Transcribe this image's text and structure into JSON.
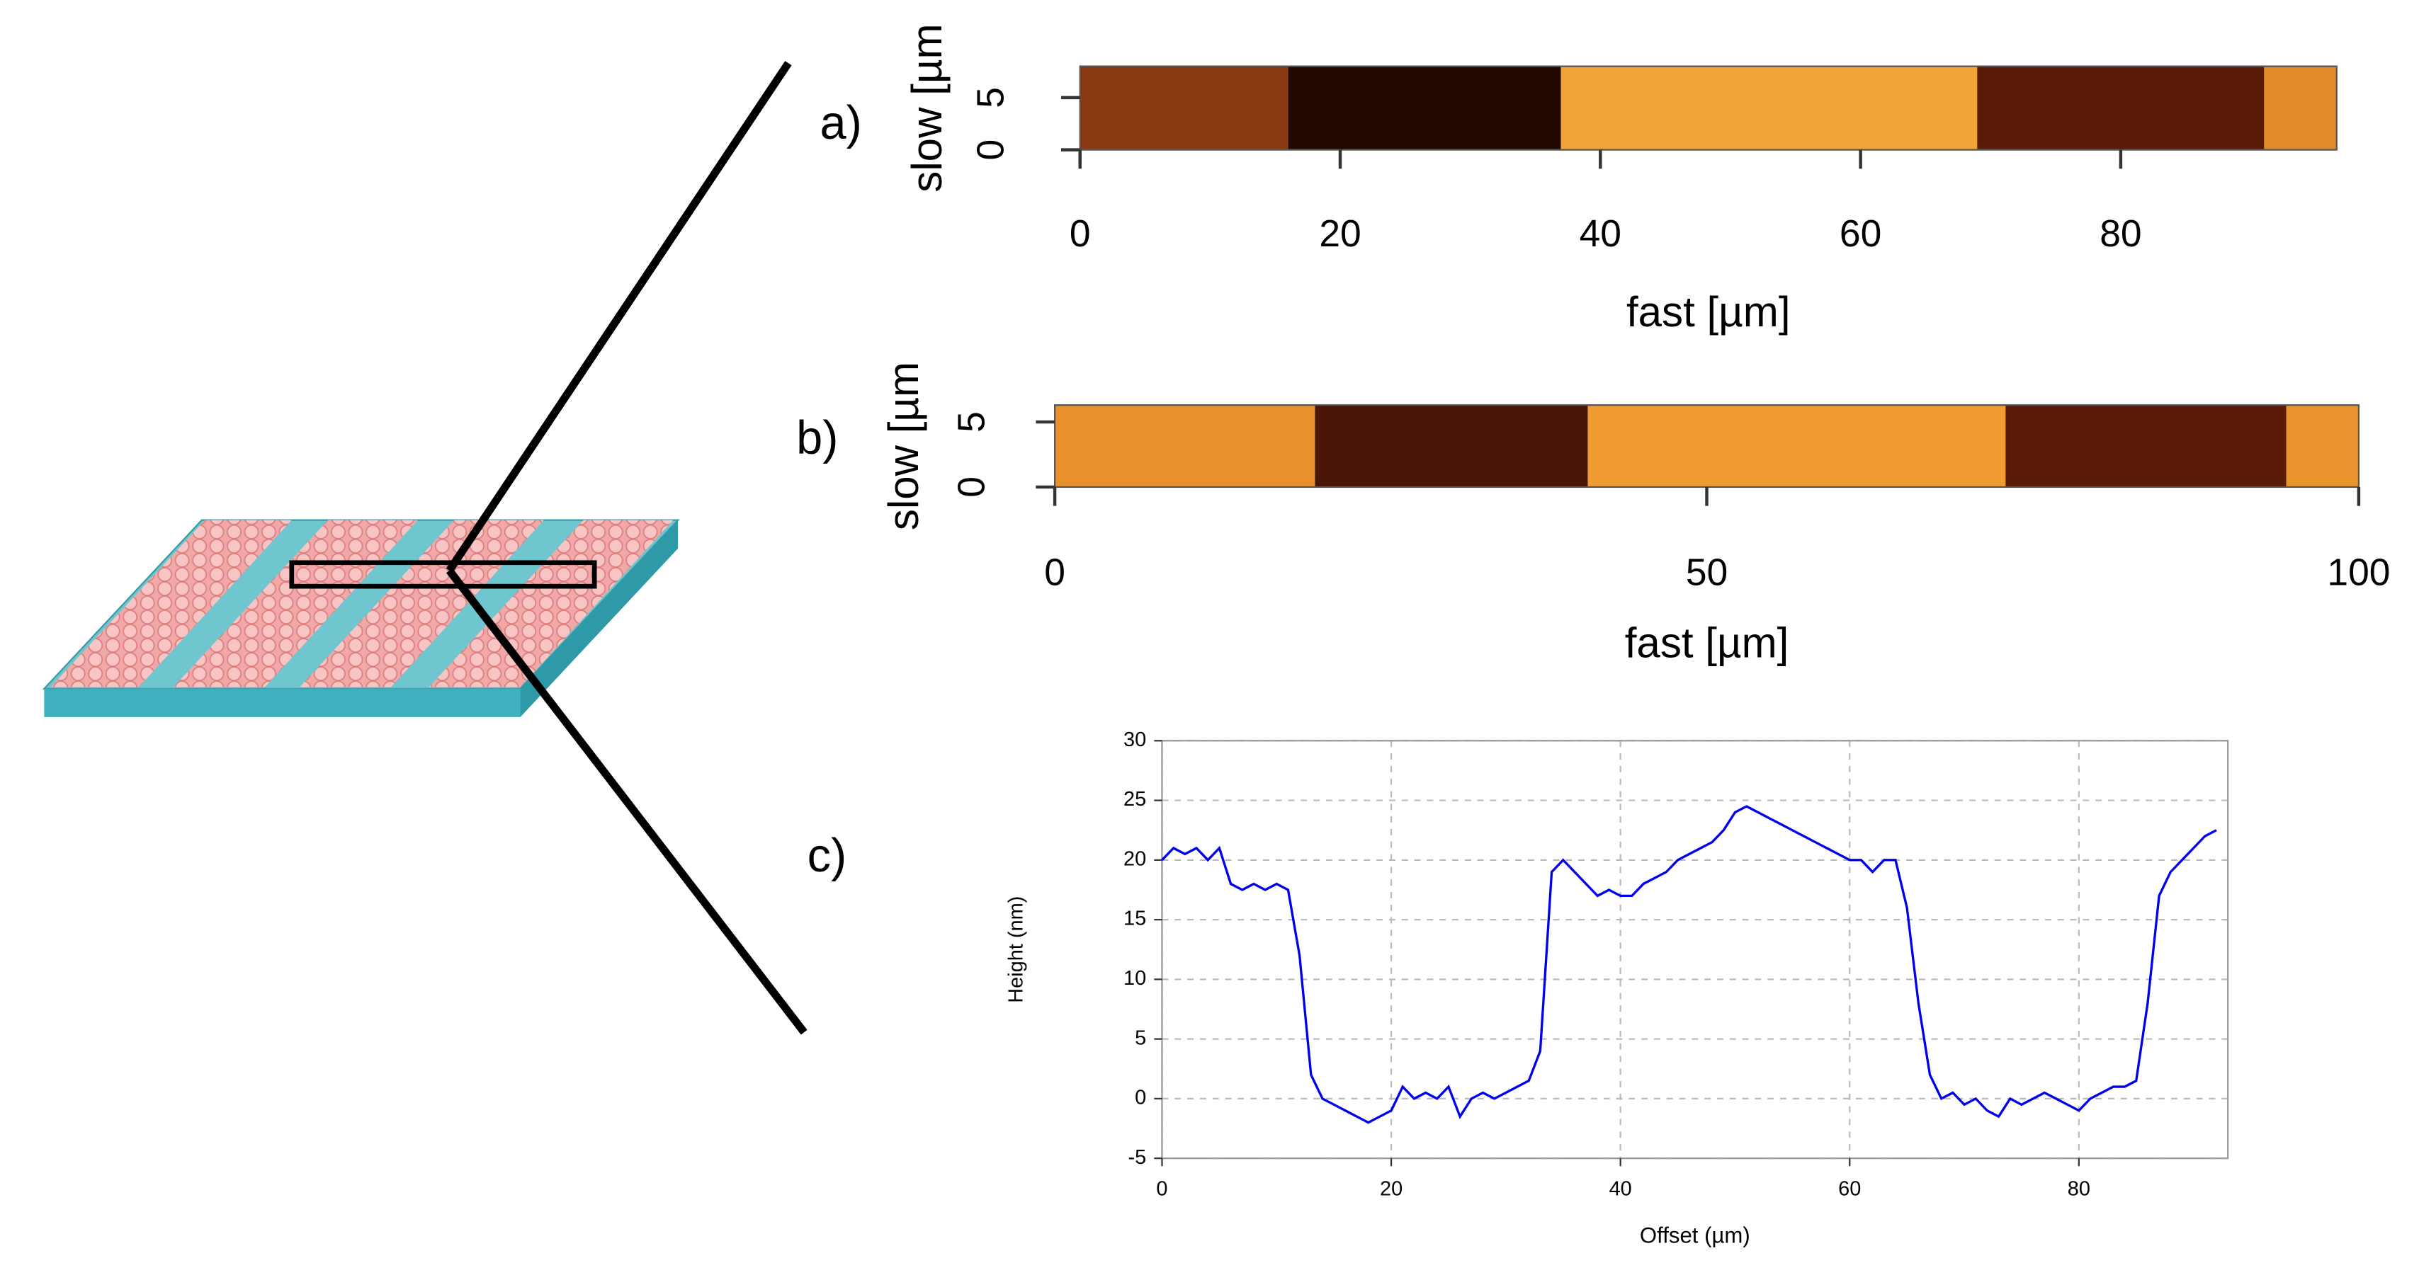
{
  "chart_data": [
    {
      "type": "image",
      "label": "a)",
      "x_label": "fast [µm]",
      "y_label": "slow [µm",
      "xlim": [
        0,
        96.6
      ],
      "xticks": [
        0,
        20,
        40,
        60,
        80
      ],
      "ylim": [
        0,
        8
      ],
      "yticks": [
        0,
        5
      ]
    },
    {
      "type": "image",
      "label": "b)",
      "x_label": "fast [µm]",
      "y_label": "slow [µm",
      "xlim": [
        0,
        100
      ],
      "xticks": [
        0,
        50,
        100
      ],
      "ylim": [
        0,
        6.3
      ],
      "yticks": [
        0,
        5
      ]
    },
    {
      "type": "line",
      "label": "c)",
      "x_label": "Offset (µm)",
      "y_label": "Height (nm)",
      "xlim": [
        0,
        93
      ],
      "xticks": [
        0,
        20,
        40,
        60,
        80
      ],
      "ylim": [
        -5,
        30
      ],
      "yticks": [
        -5,
        0,
        5,
        10,
        15,
        20,
        25,
        30
      ],
      "grid": true,
      "x": [
        0,
        1,
        2,
        3,
        4,
        5,
        6,
        7,
        8,
        9,
        10,
        11,
        12,
        13,
        14,
        15,
        16,
        17,
        18,
        19,
        20,
        21,
        22,
        23,
        24,
        25,
        26,
        27,
        28,
        29,
        30,
        31,
        32,
        33,
        34,
        35,
        36,
        37,
        38,
        39,
        40,
        41,
        42,
        43,
        44,
        45,
        46,
        47,
        48,
        49,
        50,
        51,
        52,
        53,
        54,
        55,
        56,
        57,
        58,
        59,
        60,
        61,
        62,
        63,
        64,
        65,
        66,
        67,
        68,
        69,
        70,
        71,
        72,
        73,
        74,
        75,
        76,
        77,
        78,
        79,
        80,
        81,
        82,
        83,
        84,
        85,
        86,
        87,
        88,
        89,
        90,
        91,
        92
      ],
      "series": [
        {
          "name": "Height",
          "color": "#0000ee",
          "values": [
            20,
            21,
            20.5,
            21,
            20,
            21,
            18,
            17.5,
            18,
            17.5,
            18,
            17.5,
            12,
            2,
            0,
            -0.5,
            -1,
            -1.5,
            -2,
            -1.5,
            -1,
            1,
            0,
            0.5,
            0,
            1,
            -1.5,
            0,
            0.5,
            0,
            0.5,
            1,
            1.5,
            4,
            19,
            20,
            19,
            18,
            17,
            17.5,
            17,
            17,
            18,
            18.5,
            19,
            20,
            20.5,
            21,
            21.5,
            22.5,
            24,
            24.5,
            24,
            23.5,
            23,
            22.5,
            22,
            21.5,
            21,
            20.5,
            20,
            20,
            19,
            20,
            20,
            16,
            8,
            2,
            0,
            0.5,
            -0.5,
            0,
            -1,
            -1.5,
            0,
            -0.5,
            0,
            0.5,
            0,
            -0.5,
            -1,
            0,
            0.5,
            1,
            1,
            1.5,
            8,
            17,
            19,
            20,
            21,
            22,
            22.5
          ]
        }
      ]
    }
  ]
}
